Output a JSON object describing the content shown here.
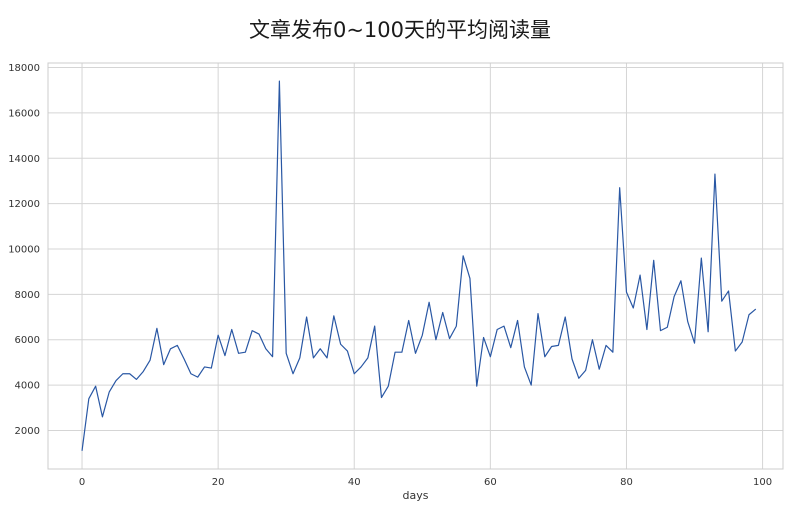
{
  "chart_data": {
    "type": "line",
    "title": "文章发布0~100天的平均阅读量",
    "xlabel": "days",
    "ylabel": "",
    "xlim": [
      -5,
      103
    ],
    "ylim": [
      300,
      18200
    ],
    "xticks": [
      0,
      20,
      40,
      60,
      80,
      100
    ],
    "yticks": [
      2000,
      4000,
      6000,
      8000,
      10000,
      12000,
      14000,
      16000,
      18000
    ],
    "grid": true,
    "legend": "none",
    "line_color": "#2957a4",
    "x": [
      0,
      1,
      2,
      3,
      4,
      5,
      6,
      7,
      8,
      9,
      10,
      11,
      12,
      13,
      14,
      15,
      16,
      17,
      18,
      19,
      20,
      21,
      22,
      23,
      24,
      25,
      26,
      27,
      28,
      29,
      30,
      31,
      32,
      33,
      34,
      35,
      36,
      37,
      38,
      39,
      40,
      41,
      42,
      43,
      44,
      45,
      46,
      47,
      48,
      49,
      50,
      51,
      52,
      53,
      54,
      55,
      56,
      57,
      58,
      59,
      60,
      61,
      62,
      63,
      64,
      65,
      66,
      67,
      68,
      69,
      70,
      71,
      72,
      73,
      74,
      75,
      76,
      77,
      78,
      79,
      80,
      81,
      82,
      83,
      84,
      85,
      86,
      87,
      88,
      89,
      90,
      91,
      92,
      93,
      94,
      95,
      96,
      97,
      98,
      99
    ],
    "series": [
      {
        "values": [
          1100,
          3400,
          3950,
          2600,
          3700,
          4200,
          4500,
          4500,
          4250,
          4600,
          5100,
          6500,
          4900,
          5600,
          5750,
          5150,
          4500,
          4350,
          4800,
          4750,
          6200,
          5300,
          6450,
          5400,
          5450,
          6400,
          6250,
          5600,
          5250,
          17400,
          5400,
          4500,
          5200,
          7000,
          5200,
          5600,
          5200,
          7050,
          5800,
          5500,
          4500,
          4800,
          5200,
          6600,
          3450,
          3950,
          5450,
          5450,
          6850,
          5400,
          6200,
          7650,
          6000,
          7200,
          6050,
          6600,
          9700,
          8700,
          3950,
          6100,
          5250,
          6450,
          6600,
          5650,
          6850,
          4800,
          4000,
          7150,
          5250,
          5700,
          5750,
          7000,
          5150,
          4300,
          4650,
          6000,
          4700,
          5750,
          5450,
          12700,
          8100,
          7400,
          8850,
          6450,
          9500,
          6400,
          6550,
          7900,
          8600,
          6800,
          5850,
          9600,
          6350,
          13300,
          7700,
          8150,
          5500,
          5900,
          7100,
          7350
        ]
      }
    ]
  }
}
